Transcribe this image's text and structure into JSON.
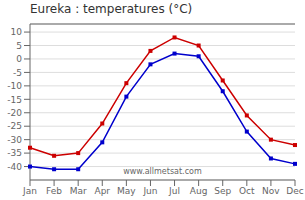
{
  "chart_data": {
    "type": "line",
    "title": "Eureka : temperatures (°C)",
    "categories": [
      "Jan",
      "Feb",
      "Mar",
      "Apr",
      "May",
      "Jun",
      "Jul",
      "Aug",
      "Sep",
      "Oct",
      "Nov",
      "Dec"
    ],
    "series": [
      {
        "color": "#cc0000",
        "marker": "square",
        "line_style": "solid",
        "values": [
          -33,
          -36,
          -35,
          -24,
          -9,
          3,
          8,
          5,
          -8,
          -21,
          -30,
          -32
        ]
      },
      {
        "color": "#0000cc",
        "marker": "square",
        "line_style": "solid",
        "values": [
          -40,
          -41,
          -41,
          -31,
          -14,
          -2,
          2,
          1,
          -12,
          -27,
          -37,
          -39
        ]
      }
    ],
    "ylim": [
      -45,
      13
    ],
    "yticks": [
      -40,
      -35,
      -30,
      -25,
      -20,
      -15,
      -10,
      -5,
      0,
      5,
      10
    ],
    "grid": "y",
    "annotations": [
      "www.allmetsat.com"
    ]
  }
}
